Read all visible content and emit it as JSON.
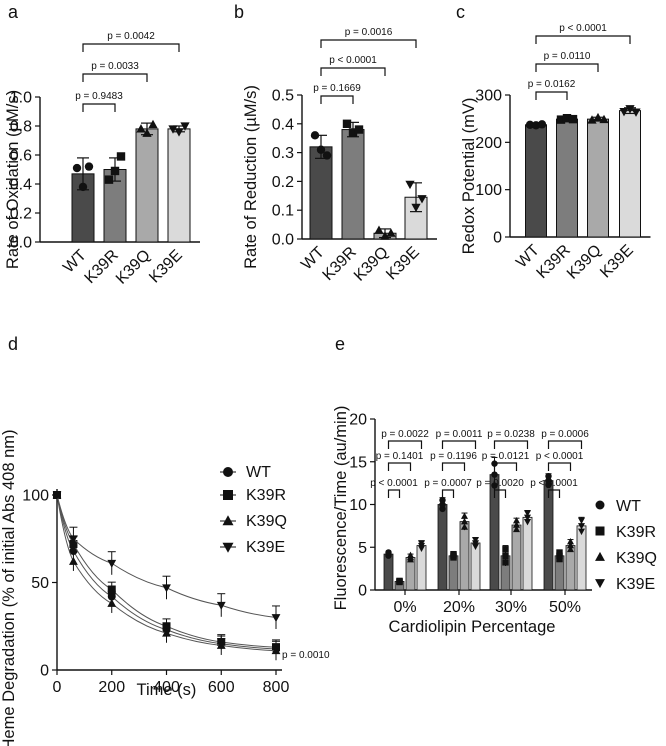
{
  "chart_data": [
    {
      "panel": "a",
      "type": "bar",
      "ylabel": "Rate of Oxidation (µM/s)",
      "categories": [
        "WT",
        "K39R",
        "K39Q",
        "K39E"
      ],
      "values": [
        0.47,
        0.5,
        0.78,
        0.78
      ],
      "errors": [
        0.11,
        0.08,
        0.04,
        0.02
      ],
      "points": [
        [
          0.51,
          0.38,
          0.52
        ],
        [
          0.43,
          0.49,
          0.59
        ],
        [
          0.78,
          0.75,
          0.81
        ],
        [
          0.78,
          0.76,
          0.8
        ]
      ],
      "ylim": [
        0,
        1.0
      ],
      "yticks": [
        "0.0",
        "0.2",
        "0.4",
        "0.6",
        "0.8",
        "1.0"
      ],
      "comparisons": [
        "p = 0.9483",
        "p = 0.0033",
        "p = 0.0042"
      ],
      "colors": [
        "#4a4a4a",
        "#7d7d7d",
        "#a9a9a9",
        "#dadada"
      ]
    },
    {
      "panel": "b",
      "type": "bar",
      "ylabel": "Rate of Reduction (µM/s)",
      "categories": [
        "WT",
        "K39R",
        "K39Q",
        "K39E"
      ],
      "values": [
        0.32,
        0.38,
        0.02,
        0.145
      ],
      "errors": [
        0.04,
        0.025,
        0.015,
        0.05
      ],
      "points": [
        [
          0.36,
          0.31,
          0.29
        ],
        [
          0.4,
          0.37,
          0.38
        ],
        [
          0.03,
          0.01,
          0.02
        ],
        [
          0.19,
          0.11,
          0.14
        ]
      ],
      "ylim": [
        0,
        0.5
      ],
      "yticks": [
        "0.0",
        "0.1",
        "0.2",
        "0.3",
        "0.4",
        "0.5"
      ],
      "comparisons": [
        "p = 0.1669",
        "p < 0.0001",
        "p = 0.0016"
      ],
      "colors": [
        "#4a4a4a",
        "#7d7d7d",
        "#a9a9a9",
        "#dadada"
      ]
    },
    {
      "panel": "c",
      "type": "bar",
      "ylabel": "Redox Potential (mV)",
      "categories": [
        "WT",
        "K39R",
        "K39Q",
        "K39E"
      ],
      "values": [
        237,
        249,
        249,
        267
      ],
      "errors": [
        2,
        4,
        4,
        6
      ],
      "points": [
        [
          237,
          236,
          238
        ],
        [
          248,
          251,
          249
        ],
        [
          247,
          252,
          248
        ],
        [
          265,
          271,
          264
        ]
      ],
      "ylim": [
        0,
        300
      ],
      "yticks": [
        "0",
        "100",
        "200",
        "300"
      ],
      "comparisons": [
        "p = 0.0162",
        "p = 0.0110",
        "p < 0.0001"
      ],
      "colors": [
        "#4a4a4a",
        "#7d7d7d",
        "#a9a9a9",
        "#dadada"
      ]
    },
    {
      "panel": "d",
      "type": "line",
      "xlabel": "Time (s)",
      "ylabel": "Heme Degradation (% of initial Abs 408 nm)",
      "x": [
        0,
        60,
        200,
        400,
        600,
        800
      ],
      "xticks": [
        "0",
        "200",
        "400",
        "600",
        "800"
      ],
      "yticks": [
        "0",
        "50",
        "100"
      ],
      "xlim": [
        0,
        800
      ],
      "ylim": [
        0,
        100
      ],
      "series": [
        {
          "name": "WT",
          "marker": "circle",
          "values": [
            100,
            68,
            42,
            23,
            15,
            12
          ]
        },
        {
          "name": "K39R",
          "marker": "square",
          "values": [
            100,
            72,
            46,
            25,
            16,
            13
          ]
        },
        {
          "name": "K39Q",
          "marker": "triangle-up",
          "values": [
            100,
            62,
            38,
            21,
            14,
            11
          ]
        },
        {
          "name": "K39E",
          "marker": "triangle-down",
          "values": [
            100,
            75,
            61,
            47,
            37,
            30
          ]
        }
      ],
      "annotation": "p = 0.0010"
    },
    {
      "panel": "e",
      "type": "bar",
      "xlabel": "Cardiolipin Percentage",
      "ylabel": "Fluorescence/Time (au/min)",
      "categories": [
        "0%",
        "20%",
        "30%",
        "50%"
      ],
      "yticks": [
        "0",
        "5",
        "10",
        "15",
        "20"
      ],
      "ylim": [
        0,
        20
      ],
      "series": [
        {
          "name": "WT",
          "marker": "circle",
          "values": [
            4.2,
            10.0,
            13.5,
            12.8
          ],
          "errors": [
            0.3,
            0.8,
            2.0,
            0.8
          ]
        },
        {
          "name": "K39R",
          "marker": "square",
          "values": [
            1.0,
            4.0,
            4.0,
            4.0
          ],
          "errors": [
            0.1,
            0.3,
            1.2,
            0.6
          ]
        },
        {
          "name": "K39Q",
          "marker": "triangle-up",
          "values": [
            3.8,
            8.0,
            7.6,
            5.2
          ],
          "errors": [
            0.4,
            1.0,
            0.8,
            0.7
          ]
        },
        {
          "name": "K39E",
          "marker": "triangle-down",
          "values": [
            5.2,
            5.5,
            8.5,
            7.5
          ],
          "errors": [
            0.5,
            0.6,
            0.8,
            1.0
          ]
        }
      ],
      "comparison_rows": [
        [
          "p = 0.0022",
          "p = 0.0011",
          "p = 0.0238",
          "p = 0.0006"
        ],
        [
          "p = 0.1401",
          "p = 0.1196",
          "p = 0.0121",
          "p < 0.0001"
        ],
        [
          "p < 0.0001",
          "p = 0.0007",
          "p = 0.0020",
          "p < 0.0001"
        ]
      ],
      "colors": [
        "#4a4a4a",
        "#7d7d7d",
        "#a9a9a9",
        "#dadada"
      ]
    }
  ]
}
